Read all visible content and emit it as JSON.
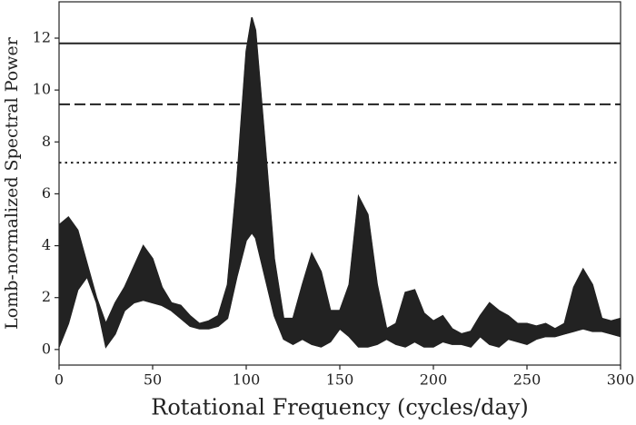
{
  "chart_data": {
    "type": "band",
    "xlabel": "Rotational Frequency (cycles/day)",
    "ylabel": "Lomb-normalized Spectral Power",
    "color": "#222222",
    "xlim": [
      0,
      300
    ],
    "ylim": [
      -0.6,
      13.4
    ],
    "xticks": [
      0,
      50,
      100,
      150,
      200,
      250,
      300
    ],
    "yticks": [
      0,
      2,
      4,
      6,
      8,
      10,
      12
    ],
    "x": [
      0,
      5,
      10,
      15,
      20,
      25,
      30,
      35,
      40,
      45,
      50,
      55,
      60,
      65,
      70,
      75,
      80,
      85,
      90,
      95,
      100,
      103,
      105,
      110,
      115,
      120,
      125,
      130,
      135,
      140,
      145,
      150,
      155,
      160,
      165,
      170,
      175,
      180,
      185,
      190,
      195,
      200,
      205,
      210,
      215,
      220,
      225,
      230,
      235,
      240,
      245,
      250,
      255,
      260,
      265,
      270,
      275,
      280,
      285,
      290,
      295,
      300
    ],
    "upper": [
      4.8,
      5.1,
      4.6,
      3.3,
      2.0,
      1.0,
      1.8,
      2.4,
      3.2,
      4.0,
      3.5,
      2.4,
      1.8,
      1.7,
      1.3,
      1.0,
      1.1,
      1.3,
      2.5,
      6.5,
      11.5,
      12.8,
      12.3,
      8.0,
      3.5,
      1.2,
      1.2,
      2.5,
      3.7,
      3.0,
      1.5,
      1.5,
      2.5,
      5.9,
      5.2,
      2.5,
      0.8,
      1.0,
      2.2,
      2.3,
      1.4,
      1.1,
      1.3,
      0.8,
      0.6,
      0.7,
      1.3,
      1.8,
      1.5,
      1.3,
      1.0,
      1.0,
      0.9,
      1.0,
      0.8,
      1.0,
      2.4,
      3.1,
      2.5,
      1.2,
      1.1,
      1.2
    ],
    "lower": [
      0.1,
      1.0,
      2.3,
      2.8,
      1.8,
      0.1,
      0.6,
      1.5,
      1.8,
      1.9,
      1.8,
      1.7,
      1.5,
      1.2,
      0.9,
      0.8,
      0.8,
      0.9,
      1.2,
      2.8,
      4.2,
      4.5,
      4.3,
      2.8,
      1.3,
      0.4,
      0.2,
      0.4,
      0.2,
      0.1,
      0.3,
      0.8,
      0.5,
      0.1,
      0.1,
      0.2,
      0.4,
      0.2,
      0.1,
      0.3,
      0.1,
      0.1,
      0.3,
      0.2,
      0.2,
      0.1,
      0.5,
      0.2,
      0.1,
      0.4,
      0.3,
      0.2,
      0.4,
      0.5,
      0.5,
      0.6,
      0.7,
      0.8,
      0.7,
      0.7,
      0.6,
      0.5
    ],
    "hlines": [
      {
        "value": 11.8,
        "style": "solid"
      },
      {
        "value": 9.45,
        "style": "dashed"
      },
      {
        "value": 7.2,
        "style": "dotted"
      }
    ]
  }
}
